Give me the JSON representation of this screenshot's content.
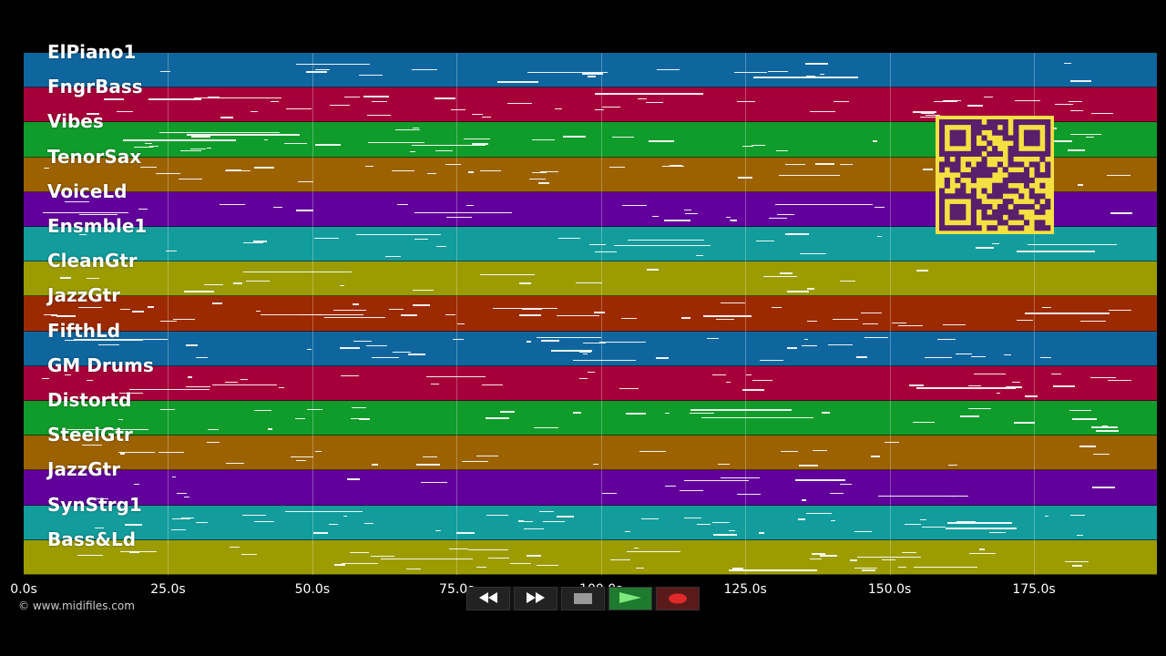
{
  "credit": "© www.midifiles.com",
  "tracks": [
    {
      "label": "ElPiano1",
      "color": "#0f669e"
    },
    {
      "label": "FngrBass",
      "color": "#a6003a"
    },
    {
      "label": "Vibes",
      "color": "#0f9c2a"
    },
    {
      "label": "TenorSax",
      "color": "#9c6200"
    },
    {
      "label": "VoiceLd",
      "color": "#62009c"
    },
    {
      "label": "Ensmble1",
      "color": "#129c9c"
    },
    {
      "label": "CleanGtr",
      "color": "#9c9c00"
    },
    {
      "label": "JazzGtr",
      "color": "#9c2a00"
    },
    {
      "label": "FifthLd",
      "color": "#0f669e"
    },
    {
      "label": "GM Drums",
      "color": "#a6003a"
    },
    {
      "label": "Distortd",
      "color": "#0f9c2a"
    },
    {
      "label": "SteelGtr",
      "color": "#9c6200"
    },
    {
      "label": "JazzGtr",
      "color": "#62009c"
    },
    {
      "label": "SynStrg1",
      "color": "#129c9c"
    },
    {
      "label": "Bass&Ld",
      "color": "#9c9c00"
    }
  ],
  "axis": {
    "ticks": [
      "0.0s",
      "25.0s",
      "50.0s",
      "75.0s",
      "100.0s",
      "125.0s",
      "150.0s",
      "175.0s"
    ],
    "tick_values": [
      0,
      25,
      50,
      75,
      100,
      125,
      150,
      175
    ],
    "max_seconds": 196.3
  },
  "transport": {
    "buttons": [
      {
        "name": "rewind",
        "icon": "rewind-icon"
      },
      {
        "name": "fast-forward",
        "icon": "fast-forward-icon"
      },
      {
        "name": "stop",
        "icon": "stop-icon"
      },
      {
        "name": "play",
        "icon": "play-icon"
      },
      {
        "name": "record",
        "icon": "record-icon"
      }
    ]
  },
  "qr_code": {
    "color": "#f5e042",
    "module_color": "#5a1f6b"
  }
}
